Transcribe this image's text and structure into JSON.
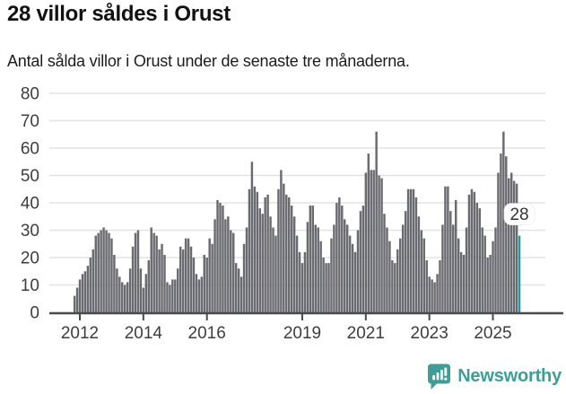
{
  "header": {
    "title": "28 villor såldes i Orust",
    "subtitle": "Antal sålda villor i Orust under de senaste tre månaderna."
  },
  "chart_data": {
    "type": "bar",
    "title": "28 villor såldes i Orust",
    "xlabel": "",
    "ylabel": "",
    "ylim": [
      0,
      80
    ],
    "y_ticks": [
      0,
      10,
      20,
      30,
      40,
      50,
      60,
      70,
      80
    ],
    "grid": "horizontal",
    "x_monthly_start": "2011-11",
    "x_monthly_end": "2025-11",
    "x_ticks": [
      {
        "label": "2012",
        "month_index": 2
      },
      {
        "label": "2014",
        "month_index": 26
      },
      {
        "label": "2016",
        "month_index": 50
      },
      {
        "label": "2019",
        "month_index": 86
      },
      {
        "label": "2021",
        "month_index": 110
      },
      {
        "label": "2023",
        "month_index": 134
      },
      {
        "label": "2025",
        "month_index": 158
      }
    ],
    "values": [
      6,
      9,
      12,
      14,
      15,
      17,
      20,
      23,
      28,
      29,
      30,
      31,
      30,
      29,
      27,
      21,
      16,
      13,
      11,
      10,
      11,
      16,
      24,
      29,
      30,
      16,
      9,
      14,
      19,
      31,
      29,
      28,
      23,
      25,
      21,
      11,
      10,
      12,
      12,
      16,
      24,
      23,
      27,
      27,
      24,
      20,
      14,
      12,
      13,
      21,
      20,
      27,
      25,
      34,
      41,
      40,
      39,
      34,
      35,
      30,
      29,
      18,
      16,
      13,
      25,
      31,
      45,
      55,
      46,
      44,
      38,
      36,
      42,
      43,
      35,
      31,
      28,
      45,
      52,
      47,
      43,
      42,
      39,
      35,
      28,
      22,
      18,
      22,
      33,
      39,
      39,
      32,
      31,
      26,
      20,
      18,
      18,
      27,
      32,
      40,
      42,
      39,
      34,
      32,
      28,
      25,
      22,
      30,
      37,
      39,
      51,
      58,
      52,
      52,
      66,
      50,
      49,
      36,
      31,
      26,
      19,
      18,
      23,
      27,
      32,
      37,
      45,
      45,
      45,
      42,
      35,
      30,
      27,
      19,
      13,
      12,
      11,
      14,
      19,
      32,
      46,
      46,
      37,
      32,
      41,
      27,
      22,
      21,
      31,
      43,
      45,
      44,
      40,
      38,
      31,
      28,
      20,
      21,
      26,
      31,
      51,
      58,
      66,
      57,
      49,
      51,
      48,
      47,
      28
    ],
    "highlight": {
      "index": 168,
      "value": 28,
      "label": "28"
    },
    "colors": {
      "bar": "#6a6a71",
      "highlight": "#1f9fa1",
      "grid": "#e3e3e3",
      "axis": "#4a4a4a",
      "tick_text": "#3d3d3d",
      "callout_bg": "#ffffff",
      "callout_text": "#333333"
    }
  },
  "footer": {
    "brand": "Newsworthy",
    "icon": "newsworthy-speech-bubble-chart-icon",
    "brand_color": "#3f9d98"
  }
}
